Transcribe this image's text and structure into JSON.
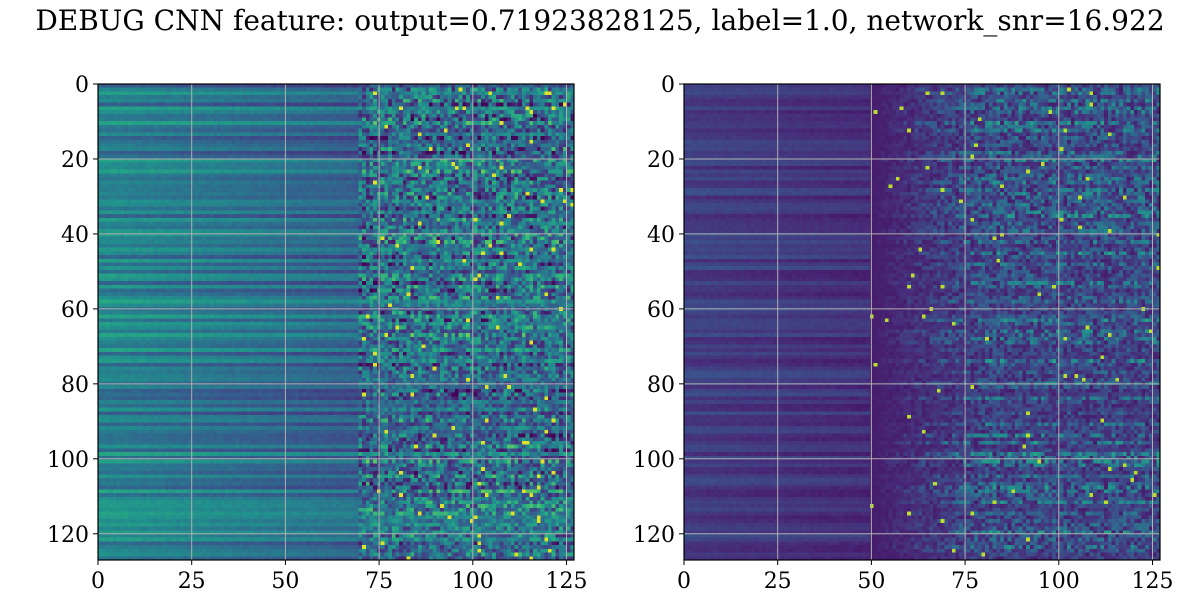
{
  "figure": {
    "title": "DEBUG CNN feature: output=0.71923828125, label=1.0, network_snr=16.922"
  },
  "chart_data": [
    {
      "type": "heatmap",
      "colormap": "viridis",
      "rows": 128,
      "cols": 128,
      "xlim": [
        0,
        127
      ],
      "ylim": [
        127,
        0
      ],
      "xticks": [
        0,
        25,
        50,
        75,
        100,
        125
      ],
      "yticks": [
        0,
        20,
        40,
        60,
        80,
        100,
        120
      ],
      "grid": true,
      "title": "",
      "xlabel": "",
      "ylabel": ""
    },
    {
      "type": "heatmap",
      "colormap": "viridis",
      "rows": 128,
      "cols": 128,
      "xlim": [
        0,
        127
      ],
      "ylim": [
        127,
        0
      ],
      "xticks": [
        0,
        25,
        50,
        75,
        100,
        125
      ],
      "yticks": [
        0,
        20,
        40,
        60,
        80,
        100,
        120
      ],
      "grid": true,
      "title": "",
      "xlabel": "",
      "ylabel": ""
    }
  ]
}
